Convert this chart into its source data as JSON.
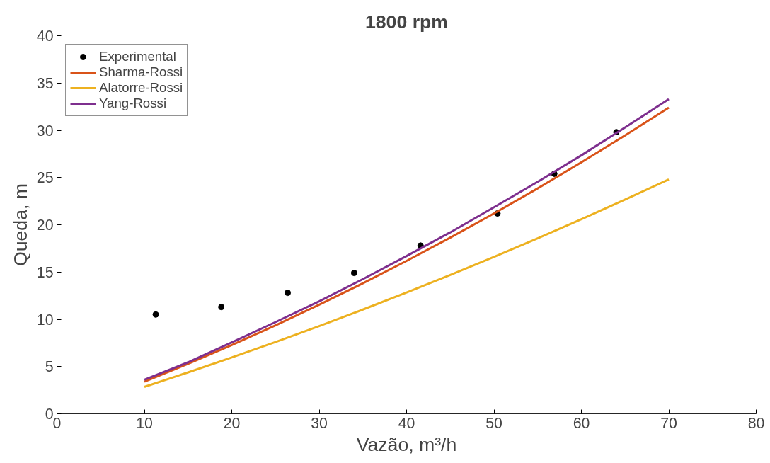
{
  "chart_data": {
    "type": "line",
    "title": "1800 rpm",
    "xlabel": "Vazão, m³/h",
    "ylabel": "Queda, m",
    "xlim": [
      0,
      80
    ],
    "xticks": [
      0,
      10,
      20,
      30,
      40,
      50,
      60,
      70,
      80
    ],
    "ylim": [
      0,
      40
    ],
    "yticks": [
      0,
      5,
      10,
      15,
      20,
      25,
      30,
      35,
      40
    ],
    "grid": false,
    "legend": "top left",
    "series": [
      {
        "name": "Experimental",
        "type": "scatter",
        "marker": "circle",
        "color": "#000000",
        "x": [
          11.3,
          18.8,
          26.4,
          34.0,
          41.6,
          50.4,
          56.9,
          64.0
        ],
        "values": [
          10.5,
          11.3,
          12.8,
          14.9,
          17.8,
          21.2,
          25.4,
          29.8
        ]
      },
      {
        "name": "Sharma-Rossi",
        "color": "#d95319",
        "x": [
          10,
          15,
          20,
          25,
          30,
          35,
          40,
          45,
          50,
          55,
          60,
          65,
          70
        ],
        "values": [
          3.4,
          5.29,
          7.27,
          9.35,
          11.54,
          13.81,
          16.18,
          18.64,
          21.2,
          23.85,
          26.61,
          29.46,
          32.4
        ]
      },
      {
        "name": "Alatorre-Rossi",
        "color": "#edb120",
        "x": [
          10,
          15,
          20,
          25,
          30,
          35,
          40,
          45,
          50,
          55,
          60,
          65,
          70
        ],
        "values": [
          2.85,
          4.38,
          5.96,
          7.59,
          9.28,
          11.03,
          12.83,
          14.69,
          16.6,
          18.56,
          20.59,
          22.66,
          24.8
        ]
      },
      {
        "name": "Yang-Rossi",
        "color": "#7e2f8e",
        "x": [
          10,
          15,
          20,
          25,
          30,
          35,
          40,
          45,
          50,
          55,
          60,
          65,
          70
        ],
        "values": [
          3.6,
          5.45,
          7.55,
          9.7,
          11.9,
          14.25,
          16.7,
          19.2,
          21.85,
          24.55,
          27.35,
          30.3,
          33.3
        ]
      }
    ]
  }
}
